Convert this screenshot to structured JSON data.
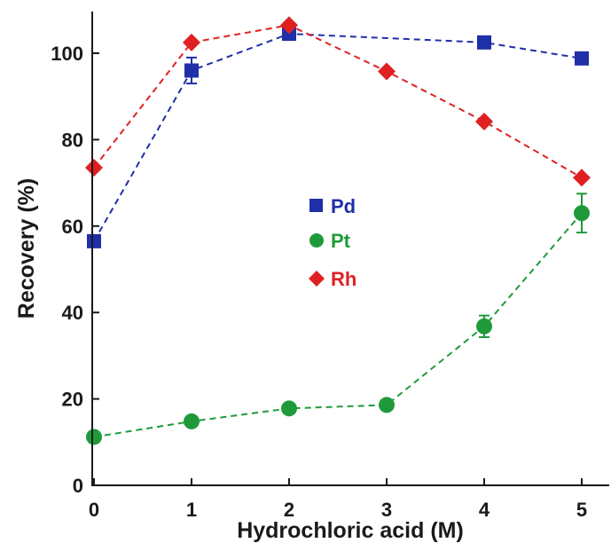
{
  "chart_data": {
    "type": "line",
    "title": "",
    "xlabel": "Hydrochloric acid (M)",
    "ylabel": "Recovery (%)",
    "x": [
      0,
      1,
      2,
      3,
      4,
      5
    ],
    "xlim": [
      0,
      5
    ],
    "ylim": [
      0,
      110
    ],
    "xticks": [
      0,
      1,
      2,
      3,
      4,
      5
    ],
    "yticks": [
      0,
      20,
      40,
      60,
      80,
      100
    ],
    "grid": false,
    "legend_position": "center",
    "series": [
      {
        "name": "Pd",
        "color": "#1f2fa8",
        "marker": "square",
        "line_style": "dashed",
        "x": [
          0,
          1,
          2,
          4,
          5
        ],
        "values": [
          56.5,
          96,
          104.5,
          102.5,
          98.8
        ],
        "error": [
          0,
          3,
          0,
          0,
          0
        ]
      },
      {
        "name": "Pt",
        "color": "#1f9a3a",
        "marker": "circle",
        "line_style": "dashed",
        "x": [
          0,
          1,
          2,
          3,
          4,
          5
        ],
        "values": [
          11.2,
          14.8,
          17.8,
          18.6,
          36.8,
          63
        ],
        "error": [
          0,
          0,
          0,
          0,
          2.5,
          4.5
        ]
      },
      {
        "name": "Rh",
        "color": "#e02020",
        "marker": "diamond",
        "line_style": "dashed",
        "x": [
          0,
          1,
          2,
          3,
          4,
          5
        ],
        "values": [
          73.5,
          102.5,
          106.5,
          95.8,
          84.2,
          71.2
        ],
        "error": [
          0,
          0,
          0,
          0,
          0,
          0
        ]
      }
    ]
  }
}
